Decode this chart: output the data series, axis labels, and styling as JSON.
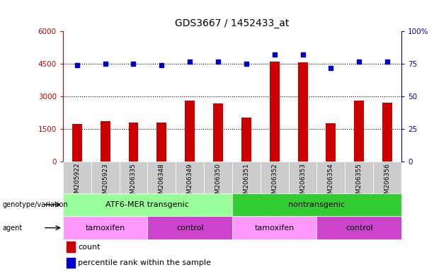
{
  "title": "GDS3667 / 1452433_at",
  "samples": [
    "GSM205922",
    "GSM205923",
    "GSM206335",
    "GSM206348",
    "GSM206349",
    "GSM206350",
    "GSM206351",
    "GSM206352",
    "GSM206353",
    "GSM206354",
    "GSM206355",
    "GSM206356"
  ],
  "counts": [
    1750,
    1870,
    1820,
    1820,
    2820,
    2680,
    2020,
    4600,
    4580,
    1780,
    2820,
    2720
  ],
  "percentiles": [
    74,
    75,
    75,
    74,
    77,
    77,
    75,
    82,
    82,
    72,
    77,
    77
  ],
  "bar_color": "#cc0000",
  "dot_color": "#0000cc",
  "left_yaxis_color": "#cc0000",
  "right_yaxis_color": "#0000cc",
  "left_ylim": [
    0,
    6000
  ],
  "right_ylim": [
    0,
    100
  ],
  "left_yticks": [
    0,
    1500,
    3000,
    4500,
    6000
  ],
  "left_yticklabels": [
    "0",
    "1500",
    "3000",
    "4500",
    "6000"
  ],
  "right_yticks": [
    0,
    25,
    50,
    75,
    100
  ],
  "right_yticklabels": [
    "0",
    "25",
    "50",
    "75",
    "100%"
  ],
  "hlines": [
    1500,
    3000,
    4500
  ],
  "genotype_groups": [
    {
      "label": "ATF6-MER transgenic",
      "start": 0,
      "end": 6,
      "color": "#99ff99"
    },
    {
      "label": "nontransgenic",
      "start": 6,
      "end": 12,
      "color": "#33cc33"
    }
  ],
  "agent_groups": [
    {
      "label": "tamoxifen",
      "start": 0,
      "end": 3,
      "color": "#ff99ff"
    },
    {
      "label": "control",
      "start": 3,
      "end": 6,
      "color": "#cc44cc"
    },
    {
      "label": "tamoxifen",
      "start": 6,
      "end": 9,
      "color": "#ff99ff"
    },
    {
      "label": "control",
      "start": 9,
      "end": 12,
      "color": "#cc44cc"
    }
  ],
  "legend_count_color": "#cc0000",
  "legend_pct_color": "#0000cc",
  "legend_count_label": "count",
  "legend_pct_label": "percentile rank within the sample",
  "genotype_label": "genotype/variation",
  "agent_label": "agent",
  "xtick_bg_even": "#cccccc",
  "xtick_bg_odd": "#cccccc"
}
